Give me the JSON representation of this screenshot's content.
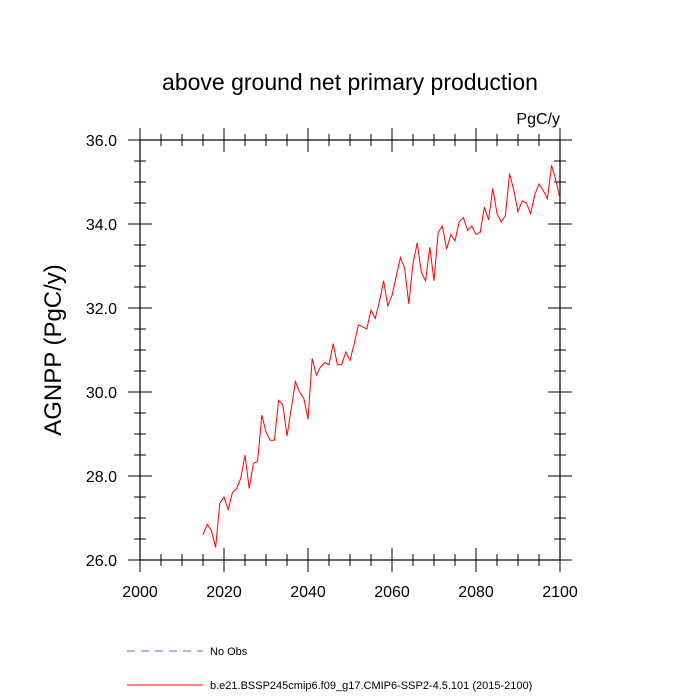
{
  "chart_data": {
    "type": "line",
    "title": "above ground net primary production",
    "units": "PgC/y",
    "ylabel": "AGNPP  (PgC/y)",
    "xlabel": "",
    "xlim": [
      2000,
      2100
    ],
    "ylim": [
      26.0,
      36.0
    ],
    "xticks": [
      2000,
      2020,
      2040,
      2060,
      2080,
      2100
    ],
    "xtick_labels": [
      "2000",
      "2020",
      "2040",
      "2060",
      "2080",
      "2100"
    ],
    "yticks": [
      26,
      28,
      30,
      32,
      34,
      36
    ],
    "ytick_labels": [
      "26.0",
      "28.0",
      "30.0",
      "32.0",
      "34.0",
      "36.0"
    ],
    "grid": false,
    "legend": [
      {
        "label": "No Obs",
        "color": "#6666ff",
        "style": "dashed"
      },
      {
        "label": "b.e21.BSSP245cmip6.f09_g17.CMIP6-SSP2-4.5.101 (2015-2100)",
        "color": "#ff0000",
        "style": "solid"
      }
    ],
    "series": [
      {
        "name": "b.e21.BSSP245cmip6.f09_g17.CMIP6-SSP2-4.5.101 (2015-2100)",
        "color": "#ff0000",
        "x": [
          2015,
          2016,
          2017,
          2018,
          2019,
          2020,
          2021,
          2022,
          2023,
          2024,
          2025,
          2026,
          2027,
          2028,
          2029,
          2030,
          2031,
          2032,
          2033,
          2034,
          2035,
          2036,
          2037,
          2038,
          2039,
          2040,
          2041,
          2042,
          2043,
          2044,
          2045,
          2046,
          2047,
          2048,
          2049,
          2050,
          2051,
          2052,
          2053,
          2054,
          2055,
          2056,
          2057,
          2058,
          2059,
          2060,
          2061,
          2062,
          2063,
          2064,
          2065,
          2066,
          2067,
          2068,
          2069,
          2070,
          2071,
          2072,
          2073,
          2074,
          2075,
          2076,
          2077,
          2078,
          2079,
          2080,
          2081,
          2082,
          2083,
          2084,
          2085,
          2086,
          2087,
          2088,
          2089,
          2090,
          2091,
          2092,
          2093,
          2094,
          2095,
          2096,
          2097,
          2098,
          2099,
          2100
        ],
        "values": [
          26.6,
          26.85,
          26.7,
          26.3,
          27.35,
          27.5,
          27.2,
          27.6,
          27.7,
          27.95,
          28.5,
          27.7,
          28.3,
          28.35,
          29.45,
          29.05,
          28.85,
          28.85,
          29.8,
          29.7,
          28.95,
          29.6,
          30.25,
          30.0,
          29.85,
          29.35,
          30.8,
          30.4,
          30.6,
          30.7,
          30.65,
          31.15,
          30.65,
          30.65,
          30.95,
          30.75,
          31.15,
          31.6,
          31.55,
          31.5,
          31.95,
          31.75,
          32.15,
          32.65,
          32.05,
          32.3,
          32.75,
          33.2,
          32.95,
          32.1,
          33.05,
          33.55,
          32.85,
          32.65,
          33.45,
          32.65,
          33.8,
          33.95,
          33.4,
          33.75,
          33.6,
          34.05,
          34.15,
          33.85,
          33.95,
          33.75,
          33.8,
          34.4,
          34.1,
          34.85,
          34.25,
          34.05,
          34.2,
          35.2,
          34.8,
          34.3,
          34.55,
          34.5,
          34.25,
          34.7,
          34.95,
          34.8,
          34.6,
          35.4,
          35.05,
          34.6
        ]
      }
    ]
  }
}
